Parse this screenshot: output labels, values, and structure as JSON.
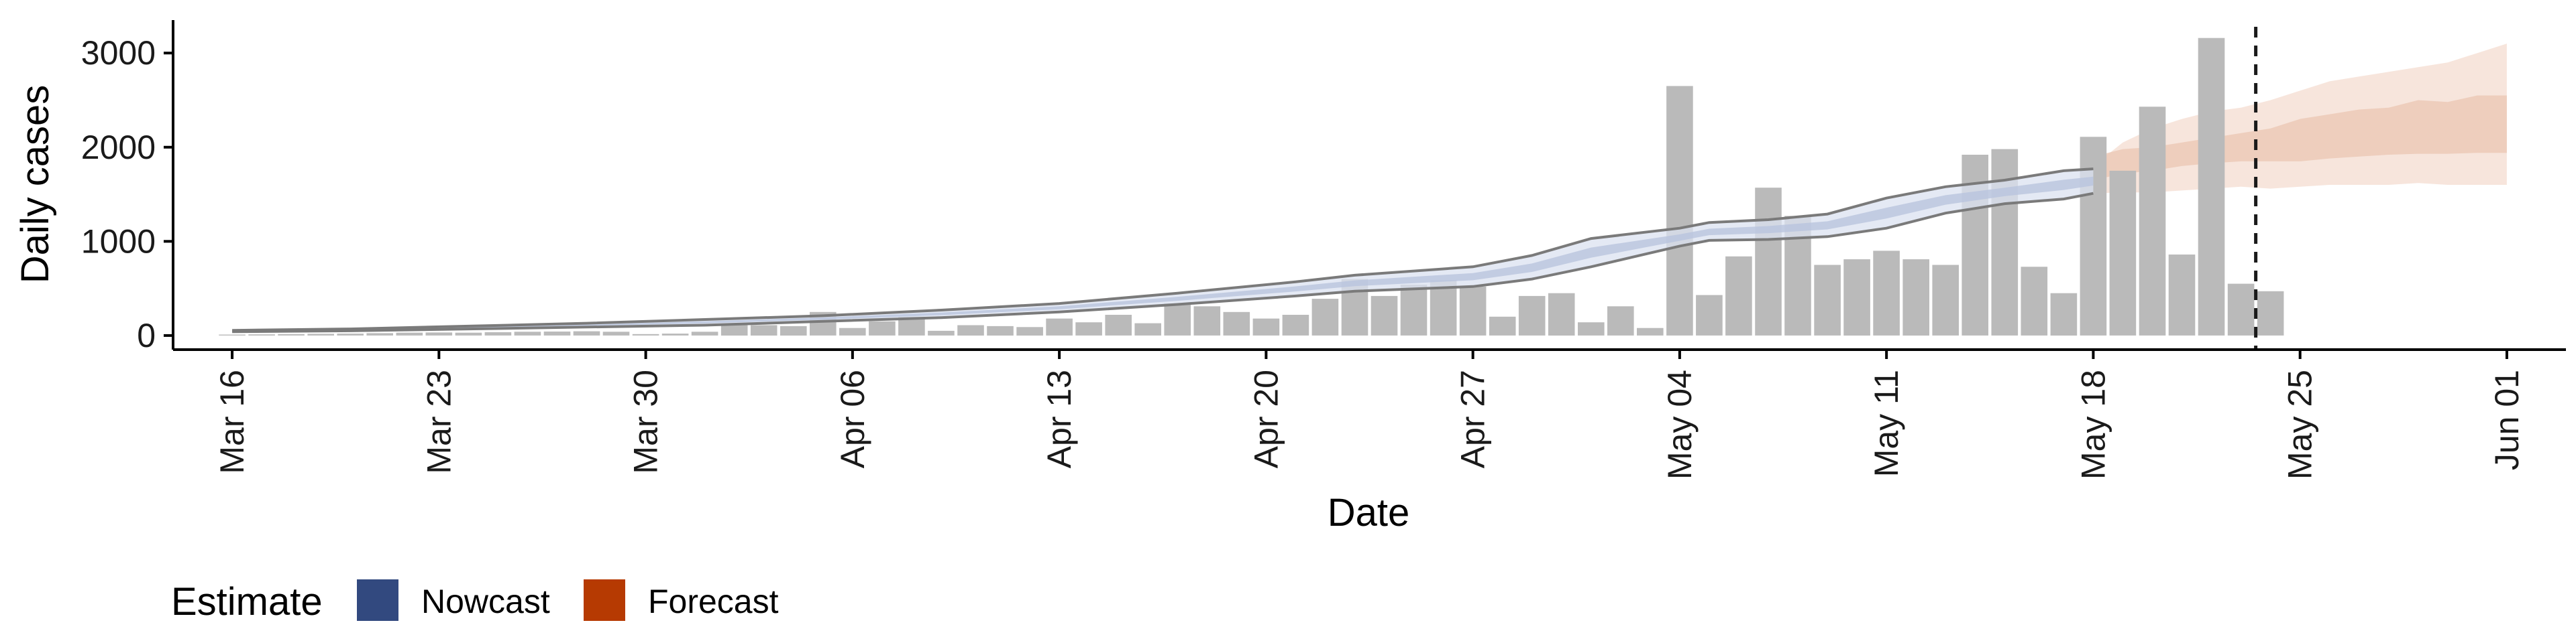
{
  "chart_data": {
    "type": "bar",
    "x_start_date": "2020-03-16",
    "xlabel": "Date",
    "ylabel": "Daily cases",
    "ylim": [
      -150,
      3350
    ],
    "y_ticks": [
      "0",
      "1000",
      "2000",
      "3000"
    ],
    "x_ticks": [
      "Mar 16",
      "Mar 23",
      "Mar 30",
      "Apr 06",
      "Apr 13",
      "Apr 20",
      "Apr 27",
      "May 04",
      "May 11",
      "May 18",
      "May 25",
      "Jun 01"
    ],
    "xlim_days": [
      -2,
      79
    ],
    "reference_line_day": 68.5,
    "daily_cases": [
      10,
      12,
      15,
      18,
      20,
      25,
      30,
      32,
      30,
      35,
      40,
      42,
      45,
      40,
      15,
      20,
      40,
      110,
      110,
      100,
      250,
      80,
      150,
      200,
      50,
      110,
      100,
      90,
      180,
      140,
      220,
      130,
      340,
      310,
      250,
      180,
      220,
      390,
      600,
      420,
      540,
      590,
      520,
      200,
      420,
      450,
      140,
      310,
      80,
      2650,
      430,
      840,
      1570,
      1270,
      750,
      810,
      900,
      810,
      750,
      1920,
      1980,
      730,
      450,
      2110,
      1750,
      2430,
      860,
      3160,
      550,
      470
    ],
    "nowcast": {
      "days": [
        0,
        4,
        8,
        12,
        16,
        20,
        24,
        28,
        32,
        36,
        38,
        42,
        44,
        46,
        49,
        50,
        52,
        54,
        56,
        58,
        60,
        62,
        63
      ],
      "lower_90": [
        40,
        50,
        70,
        90,
        110,
        150,
        190,
        250,
        330,
        420,
        470,
        520,
        600,
        730,
        950,
        1010,
        1020,
        1050,
        1140,
        1300,
        1400,
        1450,
        1510
      ],
      "upper_90": [
        55,
        70,
        100,
        130,
        170,
        210,
        270,
        340,
        450,
        570,
        640,
        730,
        850,
        1030,
        1140,
        1200,
        1230,
        1290,
        1460,
        1580,
        1650,
        1750,
        1770
      ],
      "median": [
        48,
        60,
        85,
        110,
        140,
        180,
        230,
        295,
        390,
        495,
        555,
        625,
        720,
        880,
        1040,
        1100,
        1125,
        1170,
        1300,
        1440,
        1525,
        1600,
        1640
      ]
    },
    "forecast": {
      "days": [
        63,
        64,
        65,
        66,
        67,
        68,
        69,
        70,
        71,
        72,
        73,
        74,
        75,
        76,
        77
      ],
      "lower_90": [
        1510,
        1520,
        1520,
        1540,
        1560,
        1580,
        1560,
        1580,
        1600,
        1600,
        1600,
        1620,
        1600,
        1600,
        1600
      ],
      "upper_90": [
        1800,
        2050,
        2200,
        2300,
        2380,
        2420,
        2500,
        2600,
        2700,
        2750,
        2800,
        2850,
        2900,
        3000,
        3100
      ],
      "lower_50": [
        1650,
        1720,
        1750,
        1800,
        1830,
        1850,
        1850,
        1850,
        1880,
        1900,
        1920,
        1930,
        1930,
        1940,
        1940
      ],
      "upper_50": [
        1900,
        1980,
        2000,
        2050,
        2100,
        2150,
        2200,
        2300,
        2350,
        2400,
        2420,
        2500,
        2480,
        2550,
        2550
      ]
    },
    "legend_title": "Estimate",
    "legend": [
      {
        "label": "Nowcast",
        "color": "#32497f"
      },
      {
        "label": "Forecast",
        "color": "#b63a02"
      }
    ],
    "colors": {
      "bars": "#bababa",
      "nowcast_band_outer": "#dbe1f0",
      "nowcast_band_inner": "#b9c4dd",
      "nowcast_outline": "#7a7a7a",
      "forecast_band_outer": "#f6e1d6",
      "forecast_band_inner": "#ebc8b5",
      "axis": "#000000",
      "ref_line": "#1a1a1a"
    }
  }
}
